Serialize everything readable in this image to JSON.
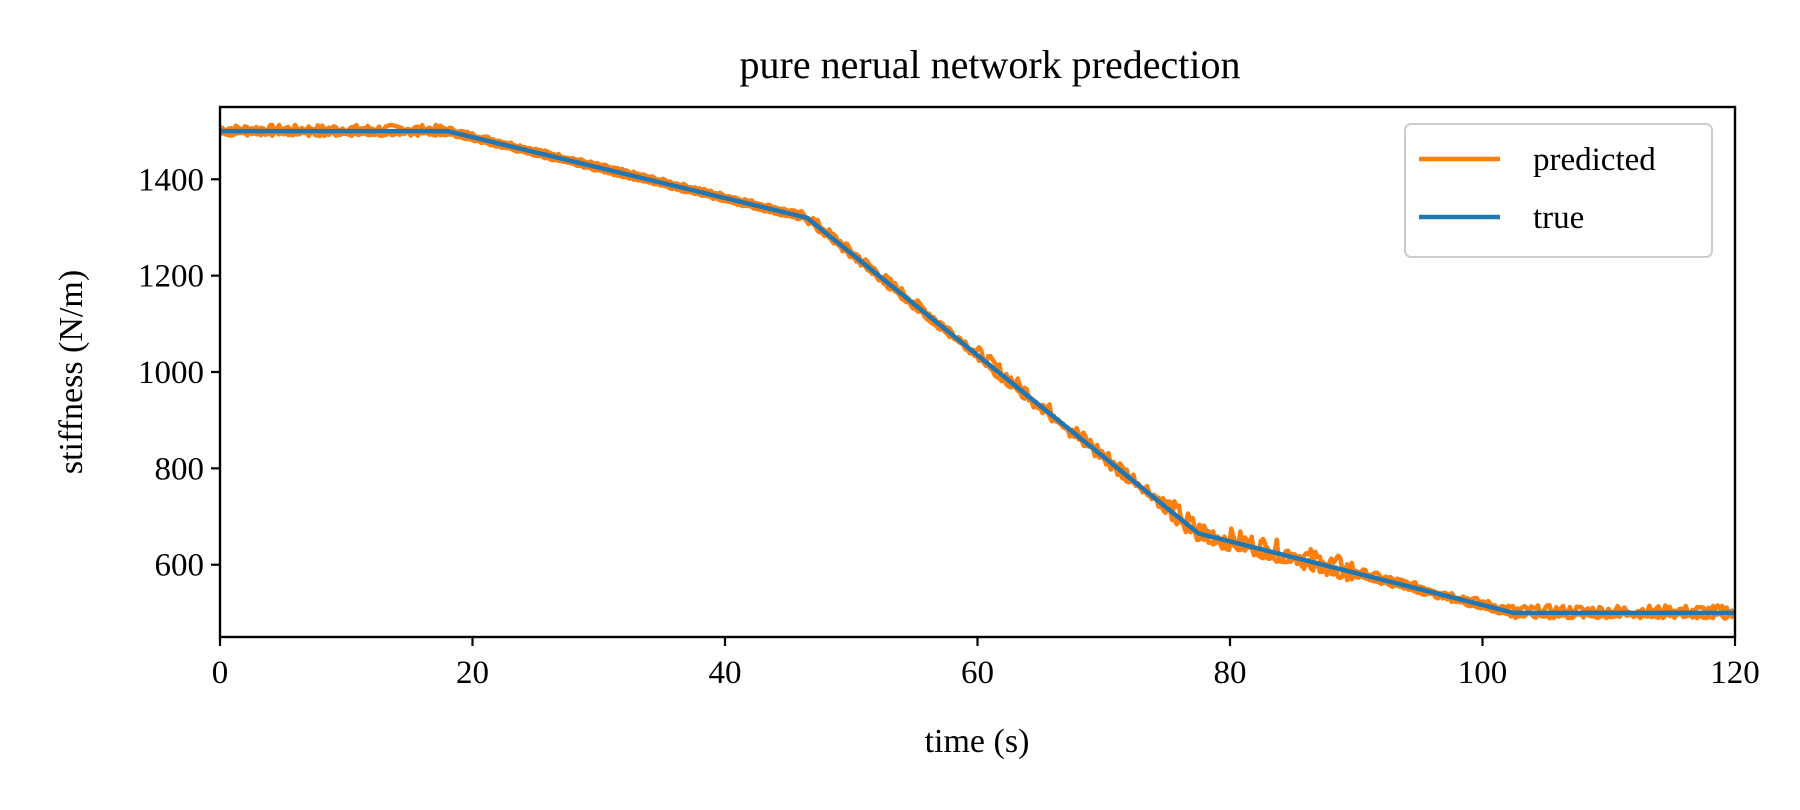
{
  "chart_data": {
    "type": "line",
    "title": "pure nerual network predection",
    "xlabel": "time (s)",
    "ylabel": "stiffness (N/m)",
    "xlim": [
      0,
      120
    ],
    "ylim": [
      450,
      1550
    ],
    "xticks": [
      0,
      20,
      40,
      60,
      80,
      100,
      120
    ],
    "yticks": [
      600,
      800,
      1000,
      1200,
      1400
    ],
    "grid": false,
    "legend_position": "top-right",
    "series": [
      {
        "name": "true",
        "color": "#1f77b4",
        "points": [
          [
            0,
            1500
          ],
          [
            18,
            1500
          ],
          [
            46.5,
            1320
          ],
          [
            77.5,
            665
          ],
          [
            102.5,
            500
          ],
          [
            120,
            500
          ]
        ]
      },
      {
        "name": "predicted",
        "color": "#ff7f0e",
        "noise": [
          [
            0,
            18,
            7
          ],
          [
            18,
            46,
            3
          ],
          [
            46,
            60,
            8
          ],
          [
            60,
            75,
            14
          ],
          [
            75,
            90,
            22
          ],
          [
            90,
            102,
            6
          ],
          [
            102,
            120,
            10
          ]
        ],
        "points": [
          [
            0,
            1500
          ],
          [
            18,
            1500
          ],
          [
            46.5,
            1320
          ],
          [
            77.5,
            665
          ],
          [
            102.5,
            500
          ],
          [
            120,
            500
          ]
        ]
      }
    ],
    "legend_order": [
      "predicted",
      "true"
    ]
  }
}
